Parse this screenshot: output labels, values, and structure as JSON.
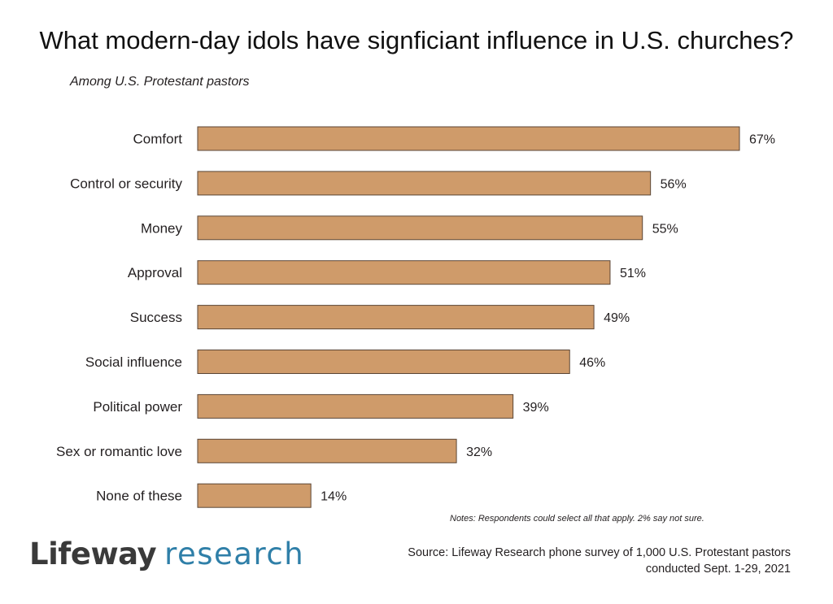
{
  "title": "What modern-day idols have signficiant influence in U.S. churches?",
  "subtitle": "Among U.S. Protestant pastors",
  "chart_data": {
    "type": "bar",
    "orientation": "horizontal",
    "title": "What modern-day idols have signficiant influence in U.S. churches?",
    "subtitle": "Among U.S. Protestant pastors",
    "categories": [
      "Comfort",
      "Control or security",
      "Money",
      "Approval",
      "Success",
      "Social influence",
      "Political power",
      "Sex or romantic love",
      "None of these"
    ],
    "values": [
      67,
      56,
      55,
      51,
      49,
      46,
      39,
      32,
      14
    ],
    "value_labels": [
      "67%",
      "56%",
      "55%",
      "51%",
      "49%",
      "46%",
      "39%",
      "32%",
      "14%"
    ],
    "unit": "%",
    "xlim": [
      0,
      67
    ],
    "grid": false,
    "bar_color": "#cf9b6a"
  },
  "notes": "Notes: Respondents could select all that apply. 2% say not sure.",
  "logo": {
    "word1": "Lifeway",
    "word2": "research"
  },
  "source": {
    "line1": "Source: Lifeway Research phone survey of 1,000 U.S. Protestant pastors",
    "line2": "conducted Sept. 1-29, 2021"
  },
  "colors": {
    "bar": "#cf9b6a",
    "bar_outline": "#5b4636",
    "logo_dark": "#3a3a3a",
    "logo_accent": "#2f7fa8"
  }
}
